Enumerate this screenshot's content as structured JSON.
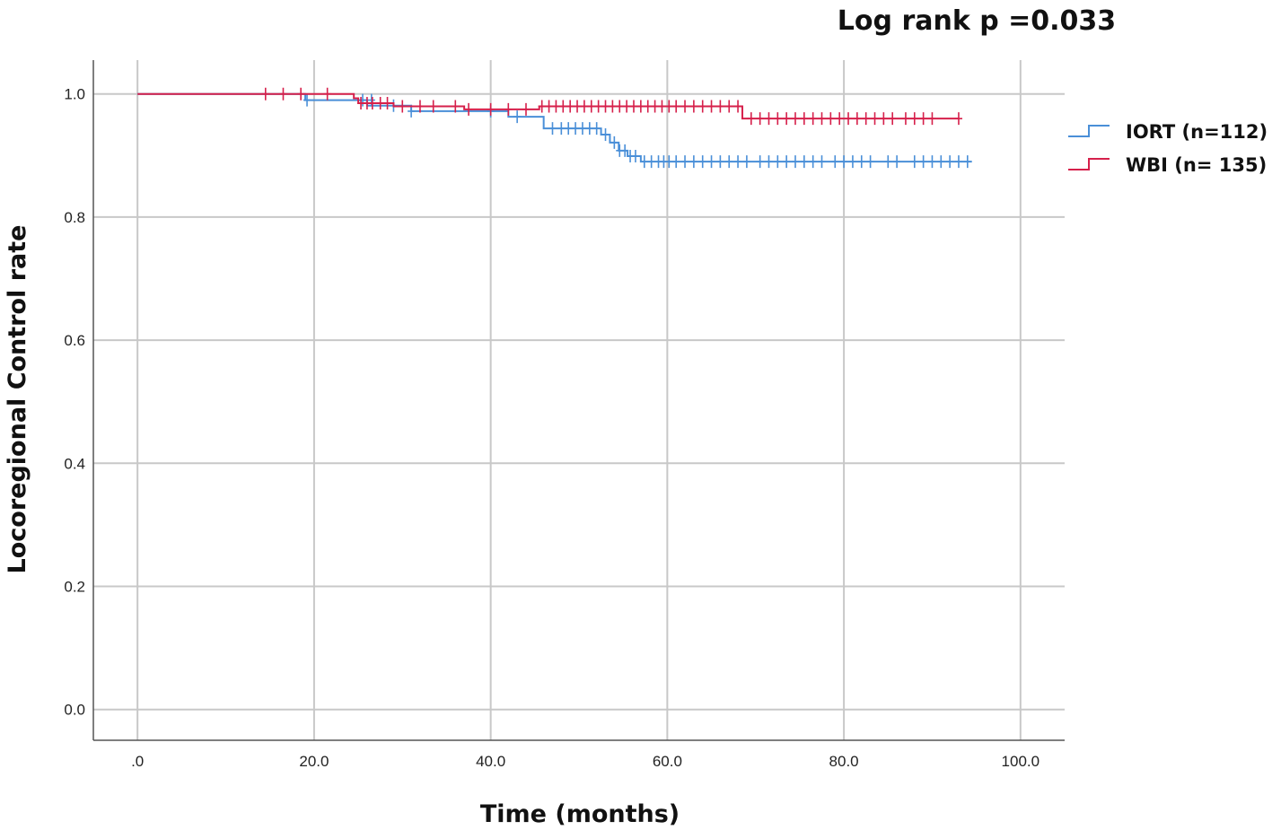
{
  "chart_data": {
    "type": "line",
    "title": "",
    "annotation": "Log rank p =0.033",
    "xlabel": "Time (months)",
    "ylabel": "Locoregional Control rate",
    "xlim": [
      -5,
      105
    ],
    "ylim": [
      -0.05,
      1.055
    ],
    "x_ticks": [
      0,
      20,
      40,
      60,
      80,
      100
    ],
    "x_tick_labels": [
      ".0",
      "20.0",
      "40.0",
      "60.0",
      "80.0",
      "100.0"
    ],
    "y_ticks": [
      0,
      0.2,
      0.4,
      0.6,
      0.8,
      1.0
    ],
    "y_tick_labels": [
      "0.0",
      "0.2",
      "0.4",
      "0.6",
      "0.8",
      "1.0"
    ],
    "grid": true,
    "legend_position": "right",
    "series": [
      {
        "name": "IORT (n=112)",
        "color": "#4a8fd8",
        "steps": [
          [
            0,
            1.0
          ],
          [
            19,
            0.99
          ],
          [
            26,
            0.981
          ],
          [
            31,
            0.972
          ],
          [
            42,
            0.963
          ],
          [
            46,
            0.944
          ],
          [
            52.5,
            0.934
          ],
          [
            53.5,
            0.921
          ],
          [
            54.5,
            0.908
          ],
          [
            55.5,
            0.899
          ],
          [
            57,
            0.89
          ],
          [
            94.5,
            0.89
          ]
        ],
        "censored": [
          [
            19.2,
            0.99
          ],
          [
            25.5,
            0.99
          ],
          [
            26.5,
            0.99
          ],
          [
            29,
            0.981
          ],
          [
            31,
            0.972
          ],
          [
            40,
            0.972
          ],
          [
            43,
            0.963
          ],
          [
            47,
            0.944
          ],
          [
            48,
            0.944
          ],
          [
            48.8,
            0.944
          ],
          [
            49.6,
            0.944
          ],
          [
            50.4,
            0.944
          ],
          [
            51.2,
            0.944
          ],
          [
            52,
            0.944
          ],
          [
            53,
            0.934
          ],
          [
            54,
            0.921
          ],
          [
            54.6,
            0.908
          ],
          [
            55.2,
            0.908
          ],
          [
            55.8,
            0.899
          ],
          [
            56.4,
            0.899
          ],
          [
            57.4,
            0.89
          ],
          [
            58.2,
            0.89
          ],
          [
            59,
            0.89
          ],
          [
            59.6,
            0.89
          ],
          [
            60.2,
            0.89
          ],
          [
            61,
            0.89
          ],
          [
            62,
            0.89
          ],
          [
            63,
            0.89
          ],
          [
            64,
            0.89
          ],
          [
            65,
            0.89
          ],
          [
            66,
            0.89
          ],
          [
            67,
            0.89
          ],
          [
            68,
            0.89
          ],
          [
            69,
            0.89
          ],
          [
            70.5,
            0.89
          ],
          [
            71.5,
            0.89
          ],
          [
            72.5,
            0.89
          ],
          [
            73.5,
            0.89
          ],
          [
            74.5,
            0.89
          ],
          [
            75.5,
            0.89
          ],
          [
            76.5,
            0.89
          ],
          [
            77.5,
            0.89
          ],
          [
            79,
            0.89
          ],
          [
            80,
            0.89
          ],
          [
            81,
            0.89
          ],
          [
            82,
            0.89
          ],
          [
            83,
            0.89
          ],
          [
            85,
            0.89
          ],
          [
            86,
            0.89
          ],
          [
            88,
            0.89
          ],
          [
            89,
            0.89
          ],
          [
            90,
            0.89
          ],
          [
            91,
            0.89
          ],
          [
            92,
            0.89
          ],
          [
            93,
            0.89
          ],
          [
            94,
            0.89
          ]
        ]
      },
      {
        "name": "WBI (n= 135)",
        "color": "#d6204b",
        "steps": [
          [
            0,
            1.0
          ],
          [
            24.5,
            0.993
          ],
          [
            25,
            0.985
          ],
          [
            29,
            0.98
          ],
          [
            37,
            0.975
          ],
          [
            45.5,
            0.98
          ],
          [
            68.5,
            0.96
          ],
          [
            93,
            0.96
          ]
        ],
        "censored": [
          [
            14.5,
            1.0
          ],
          [
            16.5,
            1.0
          ],
          [
            18.5,
            1.0
          ],
          [
            21.5,
            1.0
          ],
          [
            25.3,
            0.985
          ],
          [
            26,
            0.985
          ],
          [
            26.6,
            0.985
          ],
          [
            27.5,
            0.985
          ],
          [
            28.3,
            0.985
          ],
          [
            30,
            0.98
          ],
          [
            32,
            0.98
          ],
          [
            33.5,
            0.98
          ],
          [
            36,
            0.98
          ],
          [
            37.5,
            0.975
          ],
          [
            40,
            0.975
          ],
          [
            42,
            0.975
          ],
          [
            44,
            0.975
          ],
          [
            45.8,
            0.98
          ],
          [
            46.6,
            0.98
          ],
          [
            47.4,
            0.98
          ],
          [
            48.2,
            0.98
          ],
          [
            49,
            0.98
          ],
          [
            49.8,
            0.98
          ],
          [
            50.6,
            0.98
          ],
          [
            51.4,
            0.98
          ],
          [
            52.2,
            0.98
          ],
          [
            53,
            0.98
          ],
          [
            53.8,
            0.98
          ],
          [
            54.6,
            0.98
          ],
          [
            55.4,
            0.98
          ],
          [
            56.2,
            0.98
          ],
          [
            57,
            0.98
          ],
          [
            57.8,
            0.98
          ],
          [
            58.6,
            0.98
          ],
          [
            59.4,
            0.98
          ],
          [
            60.2,
            0.98
          ],
          [
            61,
            0.98
          ],
          [
            62,
            0.98
          ],
          [
            63,
            0.98
          ],
          [
            64,
            0.98
          ],
          [
            65,
            0.98
          ],
          [
            66,
            0.98
          ],
          [
            67,
            0.98
          ],
          [
            68,
            0.98
          ],
          [
            69.5,
            0.96
          ],
          [
            70.5,
            0.96
          ],
          [
            71.5,
            0.96
          ],
          [
            72.5,
            0.96
          ],
          [
            73.5,
            0.96
          ],
          [
            74.5,
            0.96
          ],
          [
            75.5,
            0.96
          ],
          [
            76.5,
            0.96
          ],
          [
            77.5,
            0.96
          ],
          [
            78.5,
            0.96
          ],
          [
            79.5,
            0.96
          ],
          [
            80.5,
            0.96
          ],
          [
            81.5,
            0.96
          ],
          [
            82.5,
            0.96
          ],
          [
            83.5,
            0.96
          ],
          [
            84.5,
            0.96
          ],
          [
            85.5,
            0.96
          ],
          [
            87,
            0.96
          ],
          [
            88,
            0.96
          ],
          [
            89,
            0.96
          ],
          [
            90,
            0.96
          ],
          [
            93,
            0.96
          ]
        ]
      }
    ]
  }
}
